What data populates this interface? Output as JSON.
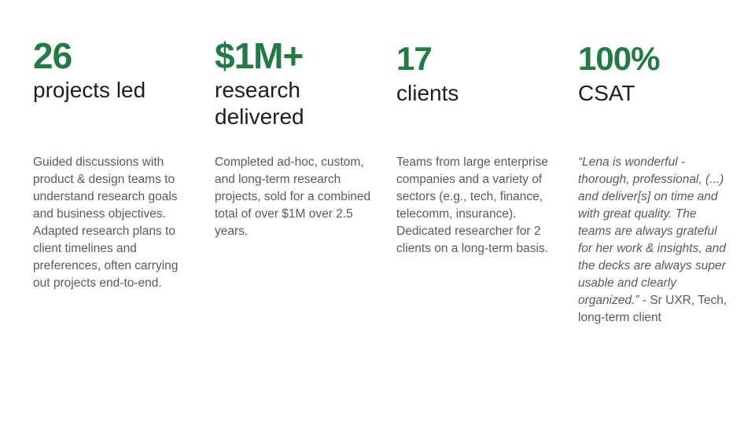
{
  "stats": [
    {
      "number": "26",
      "label": "projects led",
      "description": "Guided discussions with product & design teams to understand research goals and business objectives. Adapted research plans to client timelines and preferences, often carrying out projects end-to-end."
    },
    {
      "number": "$1M+",
      "label": "research delivered",
      "description": "Completed ad-hoc, custom, and long-term research projects, sold for a combined total of over $1M over 2.5 years."
    },
    {
      "number": "17",
      "label": "clients",
      "description": "Teams from large enterprise companies and a variety of sectors (e.g., tech, finance, telecomm, insurance). Dedicated researcher for 2 clients on a long-term basis."
    },
    {
      "number": "100%",
      "label": "CSAT",
      "quote": "“Lena is wonderful - thorough, professional, (...)  and deliver[s] on time and with great quality. The teams are always grateful for her work & insights, and the decks are always super usable and clearly organized.”",
      "attribution": " - Sr UXR, Tech, long-term client"
    }
  ],
  "colors": {
    "accent": "#237a45",
    "heading": "#1e1e1e",
    "body_text": "#5a5a5a",
    "background": "#ffffff"
  }
}
